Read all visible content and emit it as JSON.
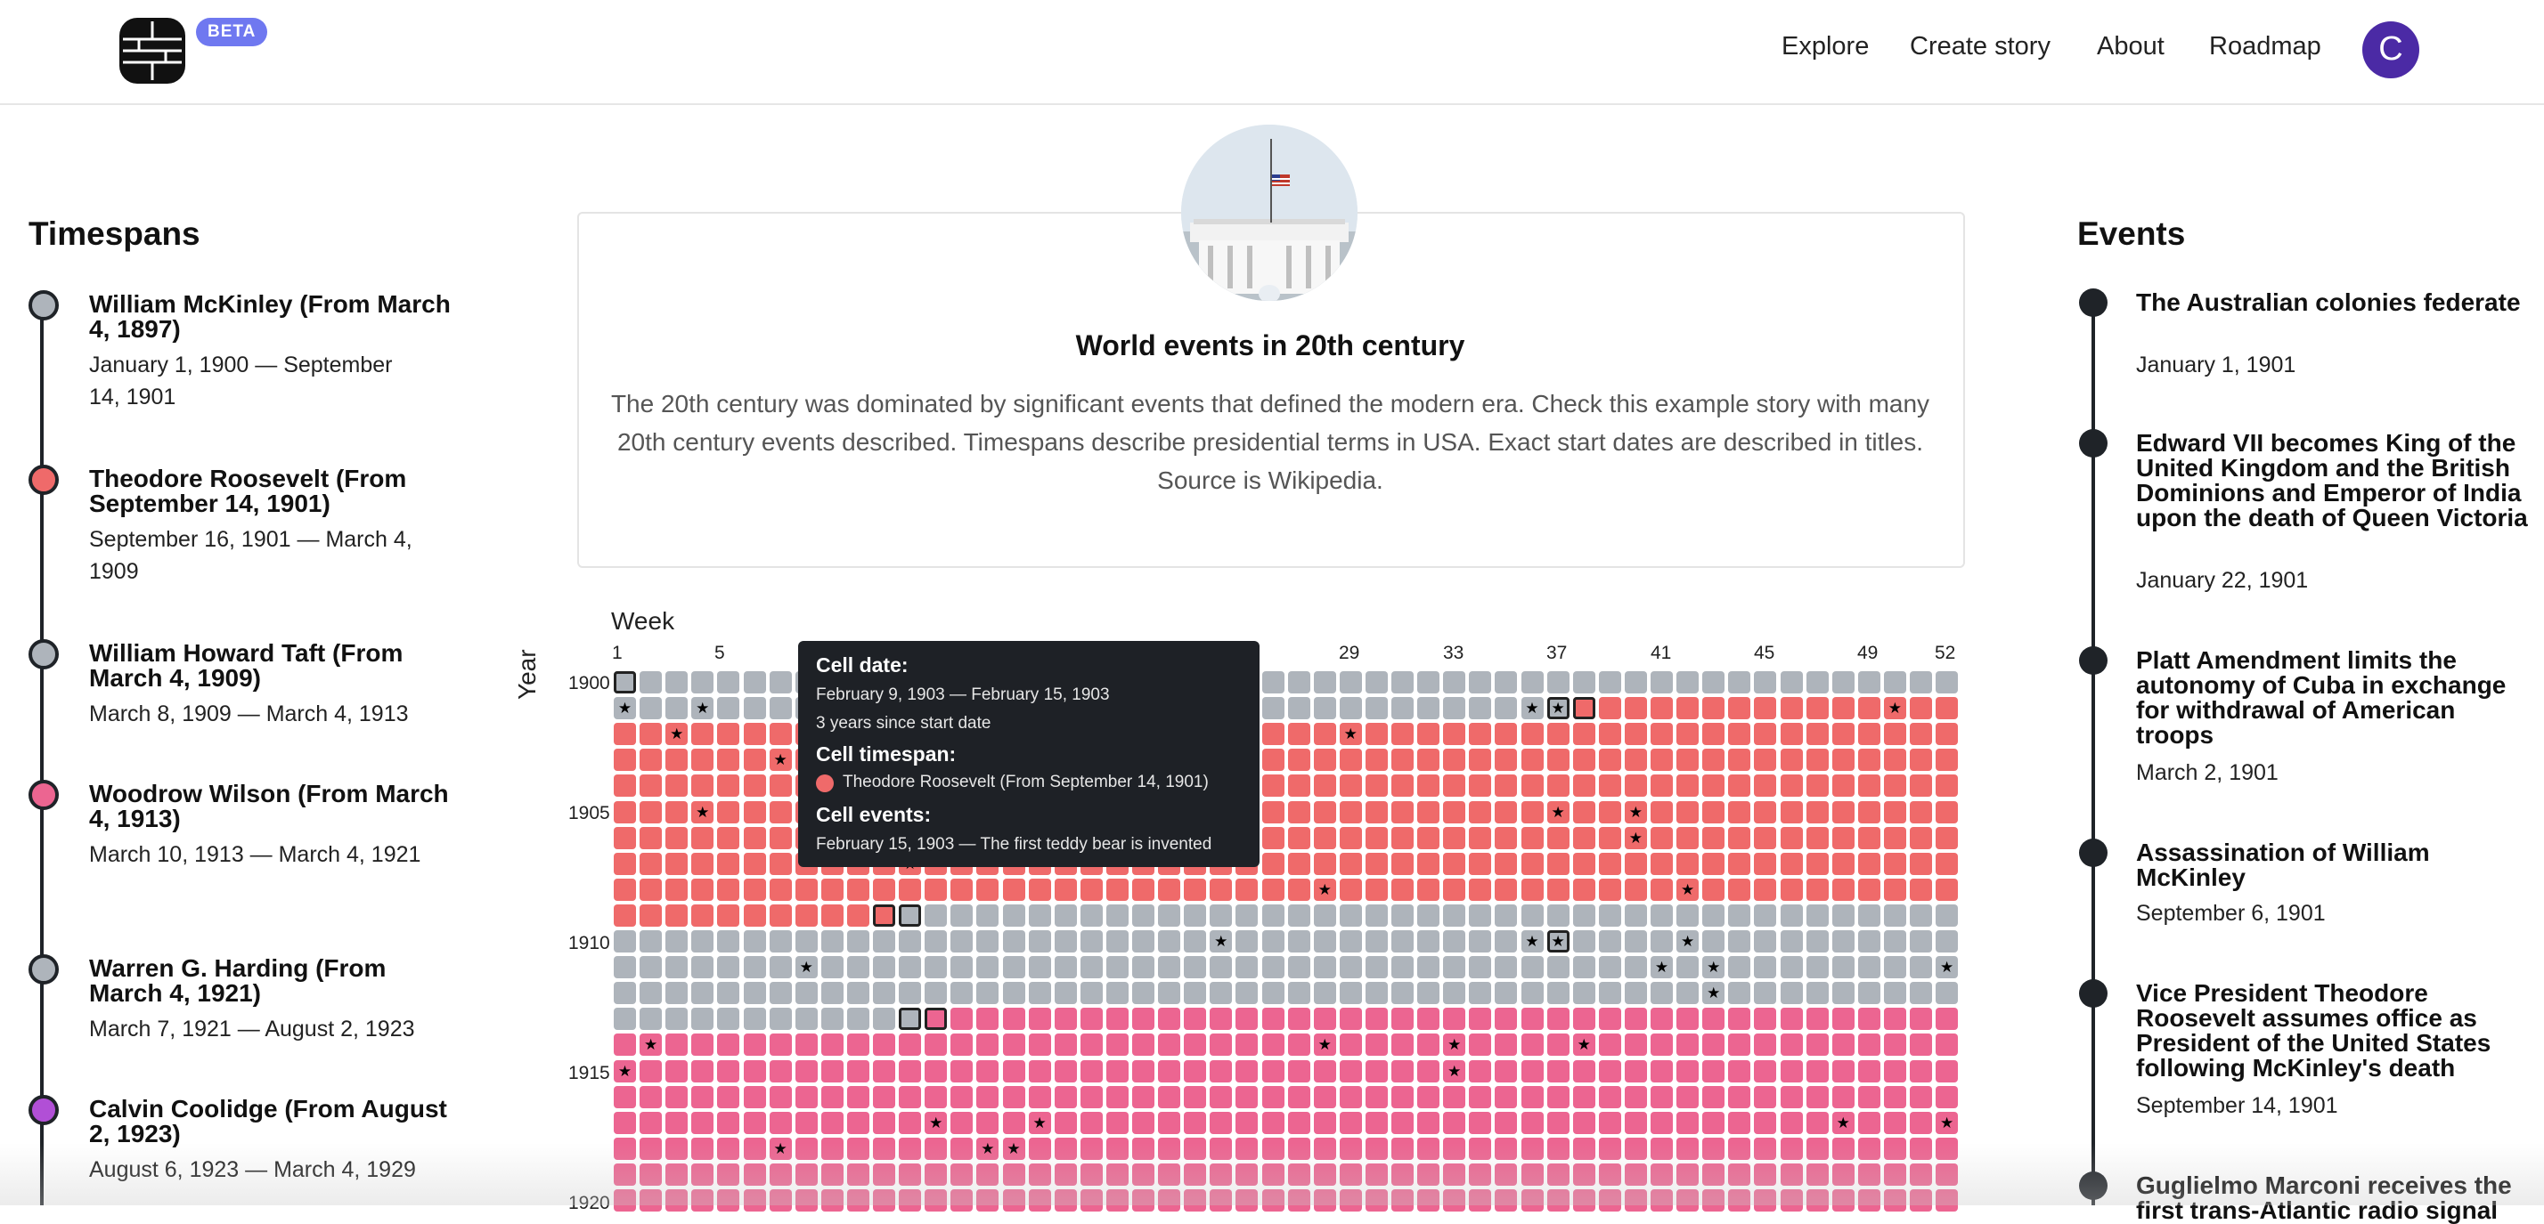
{
  "header": {
    "beta_badge": "BETA",
    "nav": [
      "Explore",
      "Create story",
      "About",
      "Roadmap"
    ],
    "avatar_letter": "C"
  },
  "timespans": {
    "title": "Timespans",
    "items": [
      {
        "name": "William McKinley (From March 4, 1897)",
        "range": "January 1, 1900 — September 14, 1901",
        "color": "#aeb4bb"
      },
      {
        "name": "Theodore Roosevelt (From September 14, 1901)",
        "range": "September 16, 1901 — March 4, 1909",
        "color": "#ef6a6a"
      },
      {
        "name": "William Howard Taft (From March 4, 1909)",
        "range": "March 8, 1909 — March 4, 1913",
        "color": "#aeb4bb"
      },
      {
        "name": "Woodrow Wilson (From March 4, 1913)",
        "range": "March 10, 1913 — March 4, 1921",
        "color": "#ec6591"
      },
      {
        "name": "Warren G. Harding (From March 4, 1921)",
        "range": "March 7, 1921 — August 2, 1923",
        "color": "#aeb4bb"
      },
      {
        "name": "Calvin Coolidge (From August 2, 1923)",
        "range": "August 6, 1923 — March 4, 1929",
        "color": "#b14fd6"
      }
    ]
  },
  "story": {
    "title": "World events in 20th century",
    "description": "The 20th century was dominated by significant events that defined the modern era. Check this example story with many 20th century events described. Timespans describe presidential terms in USA. Exact start dates are described in titles. Source is Wikipedia."
  },
  "calendar": {
    "week_label": "Week",
    "year_label": "Year",
    "week_ticks": [
      "1",
      "5",
      "29",
      "33",
      "37",
      "41",
      "45",
      "49",
      "52"
    ],
    "year_ticks": [
      "1900",
      "1905",
      "1910",
      "1915",
      "1920"
    ],
    "colors": {
      "grey": "#aeb4bb",
      "red": "#ef6a6a",
      "pink": "#ec6591"
    },
    "rows": [
      {
        "color": "grey",
        "stars": [],
        "selected": [
          1
        ]
      },
      {
        "color": "grey",
        "red_from": 38,
        "stars": [
          1,
          4,
          36,
          37,
          50
        ],
        "selected": [
          37,
          38
        ]
      },
      {
        "color": "red",
        "stars": [
          3,
          29
        ],
        "selected": []
      },
      {
        "color": "red",
        "stars": [
          7
        ],
        "selected": []
      },
      {
        "color": "red",
        "stars": [],
        "selected": []
      },
      {
        "color": "red",
        "stars": [
          4,
          37,
          40
        ],
        "selected": []
      },
      {
        "color": "red",
        "stars": [
          40
        ],
        "selected": []
      },
      {
        "color": "red",
        "stars": [
          12
        ],
        "selected": []
      },
      {
        "color": "red",
        "stars": [
          28,
          42
        ],
        "selected": []
      },
      {
        "color": "red",
        "grey_from": 12,
        "stars": [],
        "selected": [
          11,
          12
        ]
      },
      {
        "color": "grey",
        "stars": [
          24,
          36,
          37,
          42
        ],
        "selected": [
          37
        ]
      },
      {
        "color": "grey",
        "stars": [
          8,
          41,
          43,
          52
        ],
        "selected": []
      },
      {
        "color": "grey",
        "stars": [
          43
        ],
        "selected": []
      },
      {
        "color": "grey",
        "pink_from": 13,
        "stars": [],
        "selected": [
          12,
          13
        ]
      },
      {
        "color": "pink",
        "stars": [
          2,
          28,
          33,
          38
        ],
        "selected": []
      },
      {
        "color": "pink",
        "stars": [
          1,
          33
        ],
        "selected": []
      },
      {
        "color": "pink",
        "stars": [],
        "selected": []
      },
      {
        "color": "pink",
        "stars": [
          13,
          17,
          48,
          52
        ],
        "selected": []
      },
      {
        "color": "pink",
        "stars": [
          7,
          15,
          16
        ],
        "selected": []
      },
      {
        "color": "pink",
        "stars": [],
        "selected": []
      },
      {
        "color": "pink",
        "stars": [],
        "selected": []
      }
    ]
  },
  "tooltip": {
    "date_heading": "Cell date:",
    "date_value": "February 9, 1903 — February 15, 1903",
    "since_start": "3 years since start date",
    "timespan_heading": "Cell timespan:",
    "timespan_value": "Theodore Roosevelt (From September 14, 1901)",
    "timespan_color": "#ef6a6a",
    "events_heading": "Cell events:",
    "events_value": "February 15, 1903 — The first teddy bear is invented"
  },
  "events": {
    "title": "Events",
    "items": [
      {
        "name": "The Australian colonies federate",
        "date": "January 1, 1901"
      },
      {
        "name": "Edward VII becomes King of the United Kingdom and the British Dominions and Emperor of India upon the death of Queen Victoria",
        "date": "January 22, 1901"
      },
      {
        "name": "Platt Amendment limits the autonomy of Cuba in exchange for withdrawal of American troops",
        "date": "March 2, 1901"
      },
      {
        "name": "Assassination of William McKinley",
        "date": "September 6, 1901"
      },
      {
        "name": "Vice President Theodore Roosevelt assumes office as President of the United States following McKinley's death",
        "date": "September 14, 1901"
      },
      {
        "name": "Guglielmo Marconi receives the first trans-Atlantic radio signal",
        "date": ""
      }
    ]
  }
}
